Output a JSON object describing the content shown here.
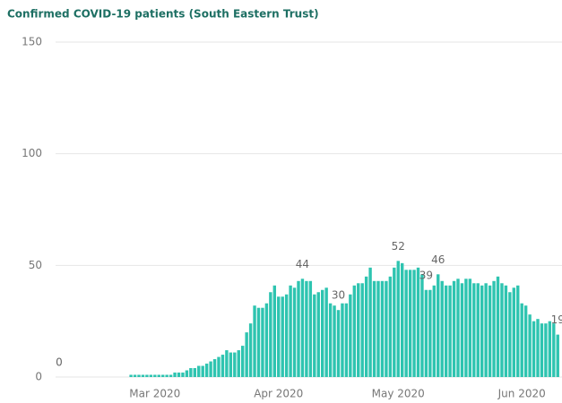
{
  "chart_data": {
    "type": "bar",
    "title": "Confirmed COVID-19 patients (South Eastern Trust)",
    "categories": [
      null,
      null,
      null,
      null,
      null,
      null,
      null,
      null,
      null,
      null,
      null,
      null,
      null,
      null,
      null,
      null,
      null,
      null,
      null,
      null,
      null,
      null,
      null,
      null,
      "Mar 2020",
      null,
      null,
      null,
      null,
      null,
      null,
      null,
      null,
      null,
      null,
      null,
      null,
      null,
      null,
      null,
      null,
      null,
      null,
      null,
      null,
      null,
      null,
      null,
      null,
      null,
      null,
      null,
      null,
      null,
      null,
      "Apr 2020",
      null,
      null,
      null,
      null,
      null,
      null,
      null,
      null,
      null,
      null,
      null,
      null,
      null,
      null,
      null,
      null,
      null,
      null,
      null,
      null,
      null,
      null,
      null,
      null,
      null,
      null,
      null,
      null,
      null,
      "May 2020",
      null,
      null,
      null,
      null,
      null,
      null,
      null,
      null,
      null,
      null,
      null,
      null,
      null,
      null,
      null,
      null,
      null,
      null,
      null,
      null,
      null,
      null,
      null,
      null,
      null,
      null,
      null,
      null,
      null,
      null,
      "Jun 2020",
      null,
      null,
      null,
      null,
      null,
      null,
      null,
      null,
      null
    ],
    "values": [
      0,
      0,
      0,
      0,
      0,
      0,
      0,
      0,
      0,
      0,
      0,
      0,
      0,
      0,
      0,
      0,
      0,
      0,
      1,
      1,
      1,
      1,
      1,
      1,
      1,
      1,
      1,
      1,
      1,
      2,
      2,
      2,
      3,
      4,
      4,
      5,
      5,
      6,
      7,
      8,
      9,
      10,
      12,
      11,
      11,
      12,
      14,
      20,
      24,
      32,
      31,
      31,
      33,
      38,
      41,
      36,
      36,
      37,
      41,
      40,
      43,
      44,
      43,
      43,
      37,
      38,
      39,
      40,
      33,
      32,
      30,
      33,
      33,
      37,
      41,
      42,
      42,
      45,
      49,
      43,
      43,
      43,
      43,
      45,
      49,
      52,
      51,
      48,
      48,
      48,
      49,
      46,
      39,
      39,
      41,
      46,
      43,
      41,
      41,
      43,
      44,
      42,
      44,
      44,
      42,
      42,
      41,
      42,
      41,
      43,
      45,
      42,
      41,
      38,
      40,
      41,
      33,
      32,
      28,
      25,
      26,
      24,
      24,
      25,
      24,
      19
    ],
    "value_labels": [
      "0",
      null,
      null,
      null,
      null,
      null,
      null,
      null,
      null,
      null,
      null,
      null,
      null,
      null,
      null,
      null,
      null,
      null,
      null,
      null,
      null,
      null,
      null,
      null,
      null,
      null,
      null,
      null,
      null,
      null,
      null,
      null,
      null,
      null,
      null,
      null,
      null,
      null,
      null,
      null,
      null,
      null,
      null,
      null,
      null,
      null,
      null,
      null,
      null,
      null,
      null,
      null,
      null,
      null,
      null,
      null,
      null,
      null,
      null,
      null,
      null,
      "44",
      null,
      null,
      null,
      null,
      null,
      null,
      null,
      null,
      "30",
      null,
      null,
      null,
      null,
      null,
      null,
      null,
      null,
      null,
      null,
      null,
      null,
      null,
      null,
      "52",
      null,
      null,
      null,
      null,
      null,
      null,
      "39",
      null,
      null,
      "46",
      null,
      null,
      null,
      null,
      null,
      null,
      null,
      null,
      null,
      null,
      null,
      null,
      null,
      null,
      null,
      null,
      null,
      null,
      null,
      null,
      null,
      null,
      null,
      null,
      null,
      null,
      null,
      null,
      null,
      "19"
    ],
    "color": "#2ec4b0",
    "ylim": [
      0,
      150
    ],
    "yticks": [
      0,
      50,
      100,
      150
    ],
    "grid": true
  }
}
